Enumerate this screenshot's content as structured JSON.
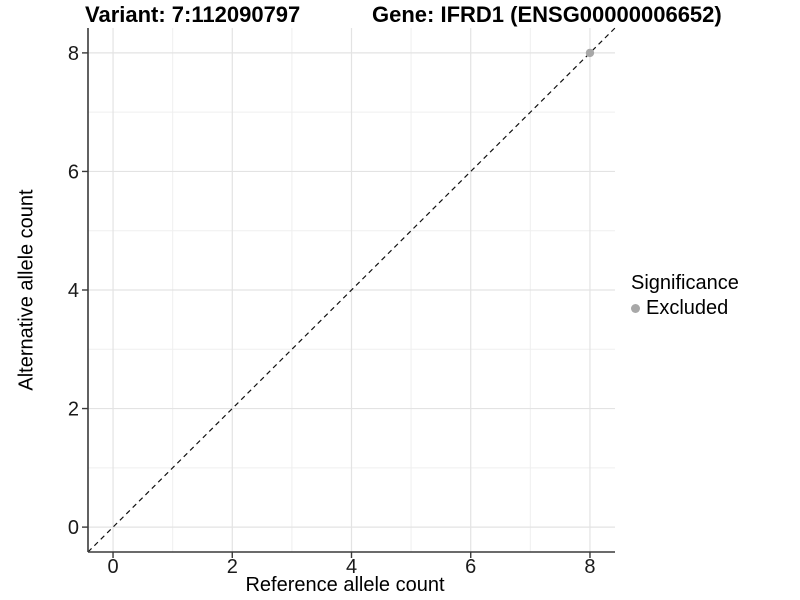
{
  "titles": {
    "variant": "Variant: 7:112090797",
    "gene": "Gene: IFRD1 (ENSG00000006652)"
  },
  "chart_data": {
    "type": "scatter",
    "xlabel": "Reference allele count",
    "ylabel": "Alternative allele count",
    "xlim": [
      -0.42,
      8.42
    ],
    "ylim": [
      -0.42,
      8.42
    ],
    "x_ticks": [
      0,
      2,
      4,
      6,
      8
    ],
    "y_ticks": [
      0,
      2,
      4,
      6,
      8
    ],
    "x_minor_ticks": [
      1,
      3,
      5,
      7
    ],
    "y_minor_ticks": [
      1,
      3,
      5,
      7
    ],
    "grid": true,
    "identity_line": {
      "slope": 1,
      "intercept": 0,
      "style": "dashed"
    },
    "points": [
      {
        "x": 8,
        "y": 8,
        "series": "Excluded"
      }
    ],
    "legend": {
      "title": "Significance",
      "position": "right",
      "entries": [
        {
          "label": "Excluded",
          "color": "#a8a8a8"
        }
      ]
    },
    "colors": {
      "background": "#ffffff",
      "grid_major": "#e3e3e3",
      "grid_minor": "#efefef",
      "axis_line": "#3a3a3a",
      "tick_text": "#1a1a1a",
      "identity_line": "#111111",
      "point": "#a8a8a8"
    }
  }
}
